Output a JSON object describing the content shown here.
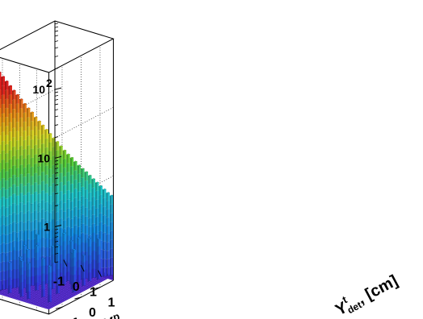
{
  "chart_data": {
    "type": "lego3d",
    "xlabel_main": "Y",
    "xlabel_sup": "p",
    "ylabel_main": "Y",
    "ylabel_sup": "t",
    "ylabel_sub": "det",
    "ylabel_unit": "[cm]",
    "x_ticks": [
      "-1",
      "0",
      "1"
    ],
    "y_ticks": [
      "-1",
      "0",
      "1"
    ],
    "z_ticks": [
      "1",
      "10",
      "10"
    ],
    "z_tick_sup": "2",
    "zscale": "log",
    "zlim": [
      0.3,
      1000
    ],
    "xlim": [
      -1.7,
      1.7
    ],
    "ylim": [
      -1.7,
      1.7
    ],
    "n_bins": 34,
    "diagonal_values": [
      800,
      640,
      530,
      450,
      380,
      320,
      270,
      230,
      195,
      165,
      140,
      120,
      100,
      86,
      74,
      63,
      54,
      46,
      40,
      34,
      29,
      25,
      22,
      19,
      16.5,
      14.5,
      12.8,
      11.2,
      9.8,
      8.6,
      7.5,
      6.6,
      5.8,
      5.2
    ],
    "offdiag_bins": [
      {
        "x": 0.15,
        "y": 0.35,
        "v": 2
      },
      {
        "x": 0.25,
        "y": 1.15,
        "v": 1.5
      },
      {
        "x": 0.35,
        "y": 0.55,
        "v": 2
      },
      {
        "x": 0.35,
        "y": 1.25,
        "v": 1.2
      },
      {
        "x": 0.45,
        "y": 0.85,
        "v": 1.5
      },
      {
        "x": 0.55,
        "y": 0.15,
        "v": 2
      },
      {
        "x": 0.55,
        "y": 0.75,
        "v": 1.3
      },
      {
        "x": 0.65,
        "y": 1.35,
        "v": 1
      },
      {
        "x": 0.75,
        "y": 0.35,
        "v": 1.5
      },
      {
        "x": 0.85,
        "y": 1.05,
        "v": 1.2
      },
      {
        "x": 0.95,
        "y": 0.55,
        "v": 1.6
      },
      {
        "x": 1.05,
        "y": 1.25,
        "v": 1.8
      },
      {
        "x": 1.15,
        "y": 0.05,
        "v": 1.2
      },
      {
        "x": 1.25,
        "y": 0.85,
        "v": 1.5
      },
      {
        "x": 1.35,
        "y": 0.45,
        "v": 1
      },
      {
        "x": 0.95,
        "y": 1.45,
        "v": 1.3
      },
      {
        "x": 0.05,
        "y": 1.45,
        "v": 1.1
      },
      {
        "x": 1.45,
        "y": 1.15,
        "v": 1.4
      },
      {
        "x": -0.25,
        "y": -1.05,
        "v": 1.5
      },
      {
        "x": -0.35,
        "y": -0.45,
        "v": 2
      },
      {
        "x": -0.45,
        "y": -1.25,
        "v": 1.2
      },
      {
        "x": -0.55,
        "y": -0.15,
        "v": 2.5
      },
      {
        "x": -0.65,
        "y": -0.85,
        "v": 1.5
      },
      {
        "x": -0.75,
        "y": -0.35,
        "v": 2
      },
      {
        "x": -0.85,
        "y": -1.45,
        "v": 1
      },
      {
        "x": -0.95,
        "y": -0.65,
        "v": 1.5
      },
      {
        "x": -1.05,
        "y": 0.25,
        "v": 1.2
      },
      {
        "x": -1.15,
        "y": -0.95,
        "v": 1.3
      },
      {
        "x": -1.25,
        "y": -0.25,
        "v": 1.8
      },
      {
        "x": -1.35,
        "y": -1.15,
        "v": 1
      },
      {
        "x": -1.45,
        "y": -0.55,
        "v": 1.5
      },
      {
        "x": -0.15,
        "y": -1.45,
        "v": 1.2
      },
      {
        "x": -1.55,
        "y": 0.05,
        "v": 1.3
      },
      {
        "x": -0.05,
        "y": -0.75,
        "v": 1.6
      },
      {
        "x": -0.75,
        "y": 0.45,
        "v": 1.4
      },
      {
        "x": -0.45,
        "y": 0.65,
        "v": 1.5
      },
      {
        "x": -0.95,
        "y": 0.95,
        "v": 1.2
      },
      {
        "x": -1.25,
        "y": 0.55,
        "v": 1.8
      },
      {
        "x": -0.15,
        "y": 1.25,
        "v": 1.2
      },
      {
        "x": -1.45,
        "y": 1.35,
        "v": 1.5
      },
      {
        "x": -0.65,
        "y": 1.45,
        "v": 1.1
      },
      {
        "x": 0.45,
        "y": -0.35,
        "v": 1.5
      },
      {
        "x": 0.65,
        "y": -1.05,
        "v": 1.3
      },
      {
        "x": 0.95,
        "y": -0.55,
        "v": 1.8
      },
      {
        "x": 1.25,
        "y": -1.25,
        "v": 1.2
      },
      {
        "x": 1.45,
        "y": -0.15,
        "v": 1.5
      },
      {
        "x": 0.25,
        "y": -1.45,
        "v": 1.2
      }
    ],
    "grid": true
  }
}
